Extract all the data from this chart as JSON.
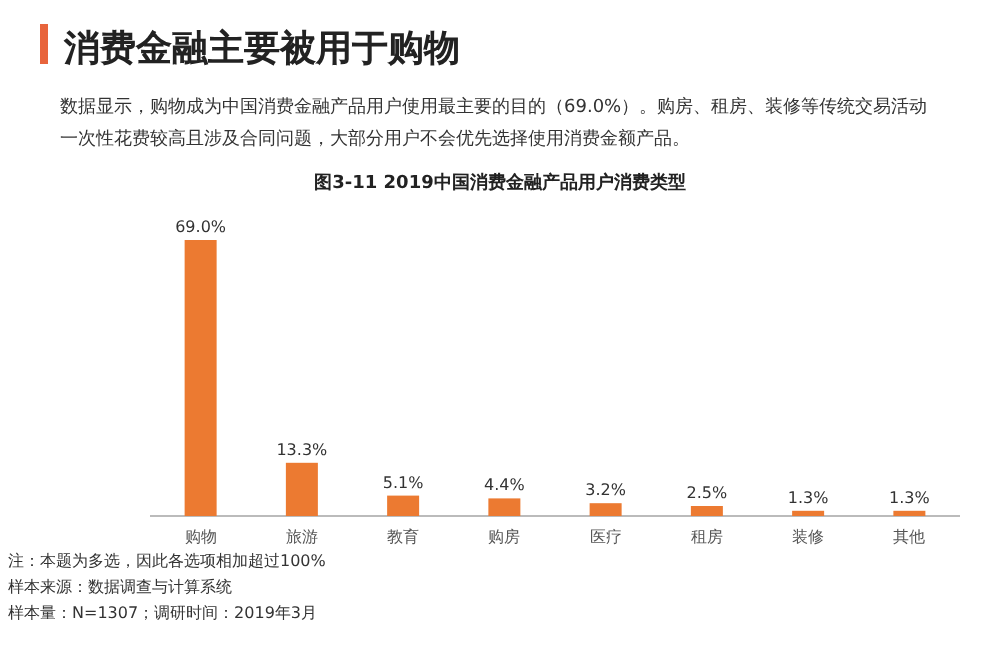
{
  "chart_data": {
    "type": "bar",
    "title": "消费金融主要被用于购物",
    "subtitle": "数据显示，购物成为中国消费金融产品用户使用最主要的目的（69.0%）。购房、租房、装修等传统交易活动一次性花费较高且涉及合同问题，大部分用户不会优先选择使用消费金额产品。",
    "annotations": [
      "图3-11 2019中国消费金融产品用户消费类型",
      "注：本题为多选，因此各选项相加超过100%",
      "样本来源：数据调查与计算系统",
      "样本量：N=1307；调研时间：2019年3月"
    ],
    "categories": [
      "购物",
      "旅游",
      "教育",
      "购房",
      "医疗",
      "租房",
      "装修",
      "其他"
    ],
    "values": [
      69.0,
      13.3,
      5.1,
      4.4,
      3.2,
      2.5,
      1.3,
      1.3
    ],
    "value_labels": [
      "69.0%",
      "13.3%",
      "5.1%",
      "4.4%",
      "3.2%",
      "2.5%",
      "1.3%",
      "1.3%"
    ],
    "color": "#ec7a31",
    "ylim": [
      0,
      69.0
    ]
  }
}
